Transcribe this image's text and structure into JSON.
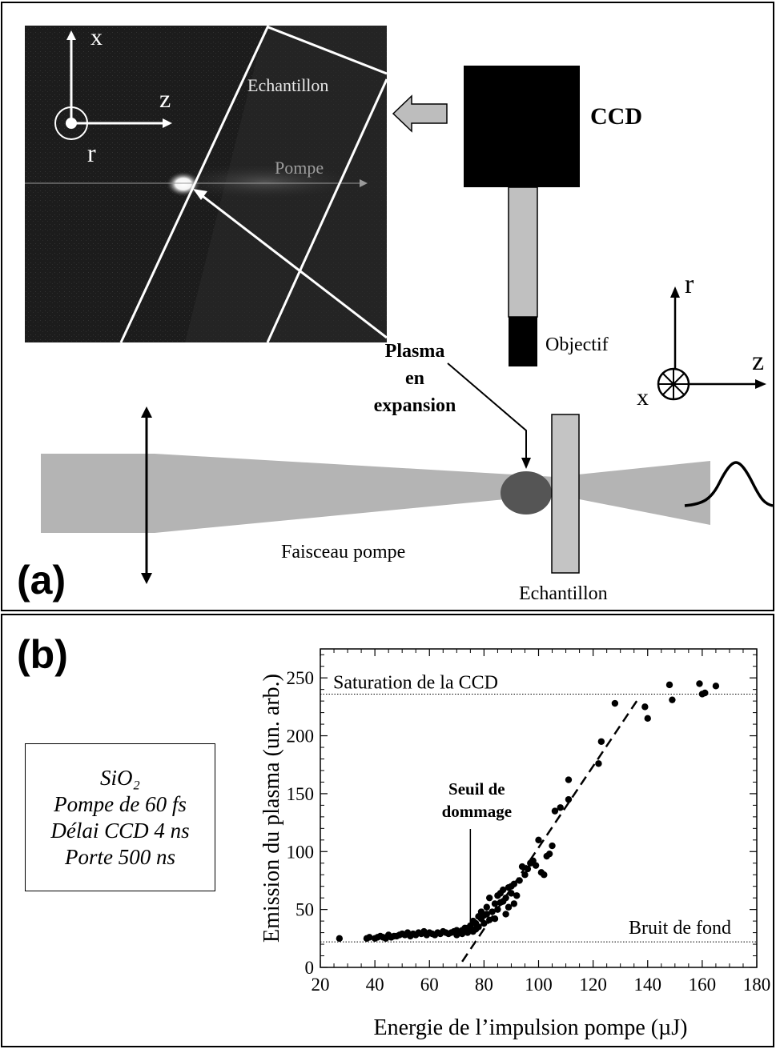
{
  "panel_a": {
    "label": "(a)",
    "photo": {
      "axis_x": "x",
      "axis_z": "z",
      "axis_r": "r",
      "sample_label": "Echantillon",
      "pump_label": "Pompe"
    },
    "camera_label": "CCD",
    "objective_label": "Objectif",
    "axes": {
      "r": "r",
      "z": "z",
      "x": "x"
    },
    "plasma_label": [
      "Plasma",
      "en",
      "expansion"
    ],
    "beam_label": "Faisceau pompe",
    "sample_label": "Echantillon",
    "colors": {
      "beam": "#b4b4b4",
      "plasma": "#555555",
      "sample": "#c4c4c4",
      "camera": "#000000",
      "objective": "#c0c0c0",
      "photo_bg": "#1c1c1c"
    }
  },
  "panel_b": {
    "label": "(b)",
    "info_lines": [
      "SiO₂",
      "Pompe de 60 fs",
      "Délai CCD 4 ns",
      "Porte 500 ns"
    ]
  },
  "chart_data": {
    "type": "scatter",
    "xlabel": "Energie de l’impulsion pompe (µJ)",
    "ylabel": "Emission du plasma (un. arb.)",
    "xlim": [
      20,
      180
    ],
    "ylim": [
      0,
      275
    ],
    "xticks": [
      20,
      40,
      60,
      80,
      100,
      120,
      140,
      160,
      180
    ],
    "yticks": [
      0,
      50,
      100,
      150,
      200,
      250
    ],
    "grid": false,
    "reference_lines": [
      {
        "label": "Saturation de la CCD",
        "y": 236
      },
      {
        "label": "Bruit de fond",
        "y": 22
      }
    ],
    "fit_line": {
      "style": "dashed",
      "from": [
        72,
        5
      ],
      "to": [
        136,
        230
      ]
    },
    "annotation": {
      "text": [
        "Seuil de",
        "dommage"
      ],
      "points_to": [
        75,
        27
      ]
    },
    "series": [
      {
        "x": [
          27,
          37,
          38,
          40,
          41,
          42,
          43,
          44,
          45,
          46,
          47,
          48,
          49,
          50,
          51,
          52,
          53,
          54,
          55,
          56,
          57,
          58,
          59,
          60,
          61,
          62,
          63,
          64,
          65,
          66,
          67,
          68,
          69,
          70,
          70,
          71,
          72,
          72,
          73,
          73,
          74,
          75,
          75,
          76,
          76,
          77,
          77,
          78,
          78,
          79,
          79,
          80,
          80,
          81,
          81,
          82,
          82,
          83,
          84,
          84,
          85,
          85,
          86,
          86,
          87,
          87,
          88,
          88,
          89,
          89,
          90,
          90,
          91,
          91,
          92,
          93,
          94,
          95,
          96,
          97,
          98,
          99,
          100,
          101,
          102,
          103,
          104,
          105,
          106,
          108,
          111,
          111,
          122,
          123,
          128,
          139,
          140,
          148,
          149,
          159,
          160,
          161,
          165
        ],
        "y": [
          25,
          25,
          26,
          25,
          26,
          27,
          26,
          25,
          28,
          26,
          27,
          27,
          28,
          29,
          28,
          30,
          27,
          29,
          28,
          30,
          29,
          31,
          28,
          30,
          29,
          28,
          30,
          29,
          31,
          30,
          29,
          30,
          31,
          32,
          28,
          30,
          32,
          29,
          31,
          34,
          30,
          32,
          36,
          31,
          40,
          33,
          38,
          35,
          44,
          42,
          48,
          38,
          45,
          46,
          52,
          41,
          60,
          48,
          55,
          42,
          62,
          50,
          56,
          64,
          57,
          67,
          46,
          60,
          69,
          52,
          64,
          70,
          55,
          72,
          62,
          75,
          87,
          80,
          85,
          90,
          92,
          88,
          110,
          82,
          80,
          96,
          98,
          105,
          135,
          138,
          145,
          162,
          176,
          195,
          228,
          225,
          215,
          244,
          231,
          245,
          236,
          237,
          243
        ]
      }
    ]
  }
}
